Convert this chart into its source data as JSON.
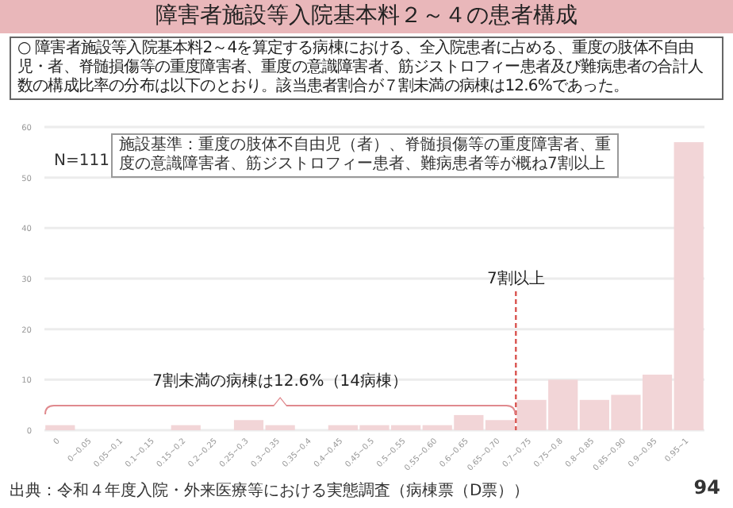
{
  "chart_data": {
    "type": "bar",
    "title": "障害者施設等入院基本料２～４の患者構成",
    "subtitle": "○ 障害者施設等入院基本料2～4を算定する病棟における、全入院患者に占める、重度の肢体不自由児・者、脊髄損傷等の重度障害者、重度の意識障害者、筋ジストロフィー患者及び難病患者の合計人数の構成比率の分布は以下のとおり。該当患者割合が７割未満の病棟は12.6%であった。",
    "categories": [
      "0",
      "0~0.05",
      "0.05~0.1",
      "0.1~0.15",
      "0.15~0.2",
      "0.2~0.25",
      "0.25~0.3",
      "0.3~0.35",
      "0.35~0.4",
      "0.4~0.45",
      "0.45~0.5",
      "0.5~0.55",
      "0.55~0.60",
      "0.6~0.65",
      "0.65~0.70",
      "0.7~0.75",
      "0.75~0.8",
      "0.8~0.85",
      "0.85~0.90",
      "0.9~0.95",
      "0.95~1"
    ],
    "values": [
      1,
      0,
      0,
      0,
      1,
      0,
      2,
      1,
      0,
      1,
      1,
      1,
      1,
      3,
      2,
      6,
      10,
      6,
      7,
      11,
      57
    ],
    "color": "#f2d5d7",
    "ylim": [
      0,
      60
    ],
    "yticks": [
      0,
      10,
      20,
      30,
      40,
      50,
      60
    ],
    "grid": "y",
    "ref_lines": [
      {
        "axis": "x",
        "value": "0.7~0.75",
        "label": "7割以上",
        "color": "#d9534f",
        "line_style": "dashed"
      }
    ],
    "annotations": [
      "N=111",
      "施設基準：重度の肢体不自由児（者）、脊髄損傷等の重度障害者、重度の意識障害者、筋ジストロフィー患者、難病患者等が概ね7割以上",
      "7割未満の病棟は12.6%（14病棟）",
      "出典：令和４年度入院・外来医療等における実態調査（病棟票（D票））",
      "94"
    ]
  }
}
